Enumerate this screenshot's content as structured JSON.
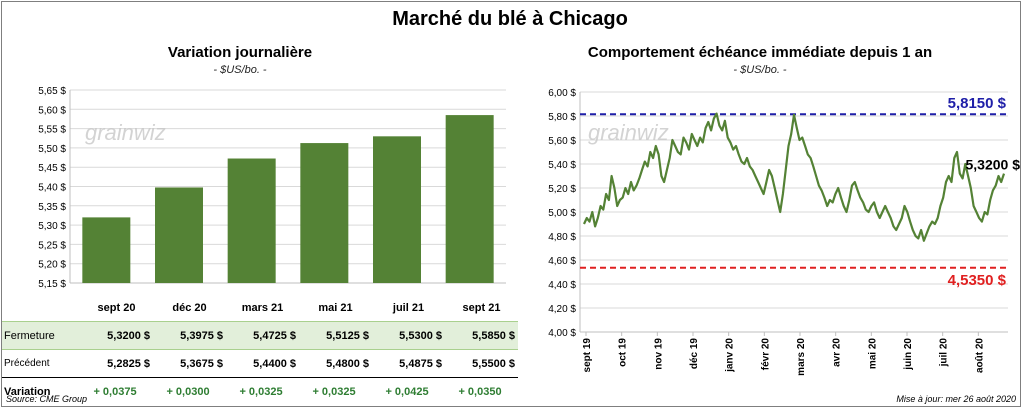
{
  "title": "Marché du blé à Chicago",
  "left": {
    "subtitle": "Variation journalière",
    "unit": "- $US/bo. -",
    "chart_data": {
      "type": "bar",
      "categories": [
        "sept 20",
        "déc 20",
        "mars 21",
        "mai 21",
        "juil 21",
        "sept 21"
      ],
      "values": [
        5.32,
        5.3975,
        5.4725,
        5.5125,
        5.53,
        5.585
      ],
      "ylim": [
        5.15,
        5.65
      ],
      "yticks": [
        "5,15 $",
        "5,20 $",
        "5,25 $",
        "5,30 $",
        "5,35 $",
        "5,40 $",
        "5,45 $",
        "5,50 $",
        "5,55 $",
        "5,60 $",
        "5,65 $"
      ],
      "color": "#548235",
      "grid": true
    },
    "table": {
      "close_label": "Fermeture",
      "close": [
        "5,3200  $",
        "5,3975  $",
        "5,4725  $",
        "5,5125  $",
        "5,5300  $",
        "5,5850  $"
      ],
      "prev_label": "Précédent",
      "prev": [
        "5,2825  $",
        "5,3675  $",
        "5,4400  $",
        "5,4800  $",
        "5,4875  $",
        "5,5500  $"
      ],
      "var_label": "Variation",
      "var": [
        "+ 0,0375",
        "+ 0,0300",
        "+ 0,0325",
        "+ 0,0325",
        "+ 0,0425",
        "+ 0,0350"
      ]
    }
  },
  "right": {
    "subtitle": "Comportement  échéance immédiate depuis 1 an",
    "unit": "- $US/bo. -",
    "chart_data": {
      "type": "line",
      "ylim": [
        4.0,
        6.0
      ],
      "yticks": [
        "4,00 $",
        "4,20 $",
        "4,40 $",
        "4,60 $",
        "4,80 $",
        "5,00 $",
        "5,20 $",
        "5,40 $",
        "5,60 $",
        "5,80 $",
        "6,00 $"
      ],
      "xticks": [
        "sept 19",
        "oct 19",
        "nov 19",
        "déc 19",
        "janv 20",
        "févr 20",
        "mars 20",
        "avr 20",
        "mai 20",
        "juin 20",
        "juil 20",
        "août 20"
      ],
      "values": [
        4.9,
        4.95,
        4.92,
        5.0,
        4.88,
        4.95,
        5.05,
        5.02,
        5.15,
        5.1,
        5.3,
        5.2,
        5.05,
        5.1,
        5.12,
        5.2,
        5.15,
        5.25,
        5.18,
        5.22,
        5.28,
        5.35,
        5.42,
        5.38,
        5.5,
        5.45,
        5.55,
        5.48,
        5.3,
        5.25,
        5.35,
        5.45,
        5.6,
        5.55,
        5.5,
        5.48,
        5.62,
        5.58,
        5.52,
        5.65,
        5.6,
        5.55,
        5.62,
        5.58,
        5.7,
        5.75,
        5.68,
        5.78,
        5.82,
        5.72,
        5.68,
        5.76,
        5.62,
        5.58,
        5.52,
        5.55,
        5.48,
        5.42,
        5.4,
        5.45,
        5.38,
        5.35,
        5.3,
        5.25,
        5.2,
        5.15,
        5.25,
        5.35,
        5.3,
        5.2,
        5.1,
        5.0,
        5.15,
        5.35,
        5.55,
        5.65,
        5.81,
        5.7,
        5.6,
        5.62,
        5.55,
        5.48,
        5.45,
        5.38,
        5.3,
        5.22,
        5.18,
        5.12,
        5.05,
        5.1,
        5.08,
        5.15,
        5.2,
        5.12,
        5.05,
        5.0,
        5.1,
        5.22,
        5.25,
        5.18,
        5.12,
        5.08,
        5.02,
        5.0,
        5.05,
        5.08,
        5.0,
        4.95,
        5.0,
        5.05,
        5.0,
        4.95,
        4.88,
        4.85,
        4.9,
        4.95,
        5.05,
        5.0,
        4.92,
        4.85,
        4.8,
        4.78,
        4.85,
        4.76,
        4.82,
        4.88,
        4.92,
        4.9,
        4.95,
        5.05,
        5.12,
        5.25,
        5.3,
        5.25,
        5.45,
        5.5,
        5.32,
        5.28,
        5.4,
        5.3,
        5.2,
        5.05,
        5.0,
        4.95,
        4.92,
        5.0,
        4.98,
        5.1,
        5.18,
        5.22,
        5.3,
        5.25,
        5.32
      ],
      "refs": [
        {
          "value": 5.815,
          "label": "5,8150  $",
          "color": "#1f1fa8"
        },
        {
          "value": 4.535,
          "label": "4,5350  $",
          "color": "#e02020"
        }
      ],
      "last_label": "5,3200 $",
      "line_color": "#548235"
    }
  },
  "watermark": "grainwiz",
  "footer": {
    "source": "Source: CME Group",
    "updated": "Mise à jour: mer 26 août 2020"
  }
}
